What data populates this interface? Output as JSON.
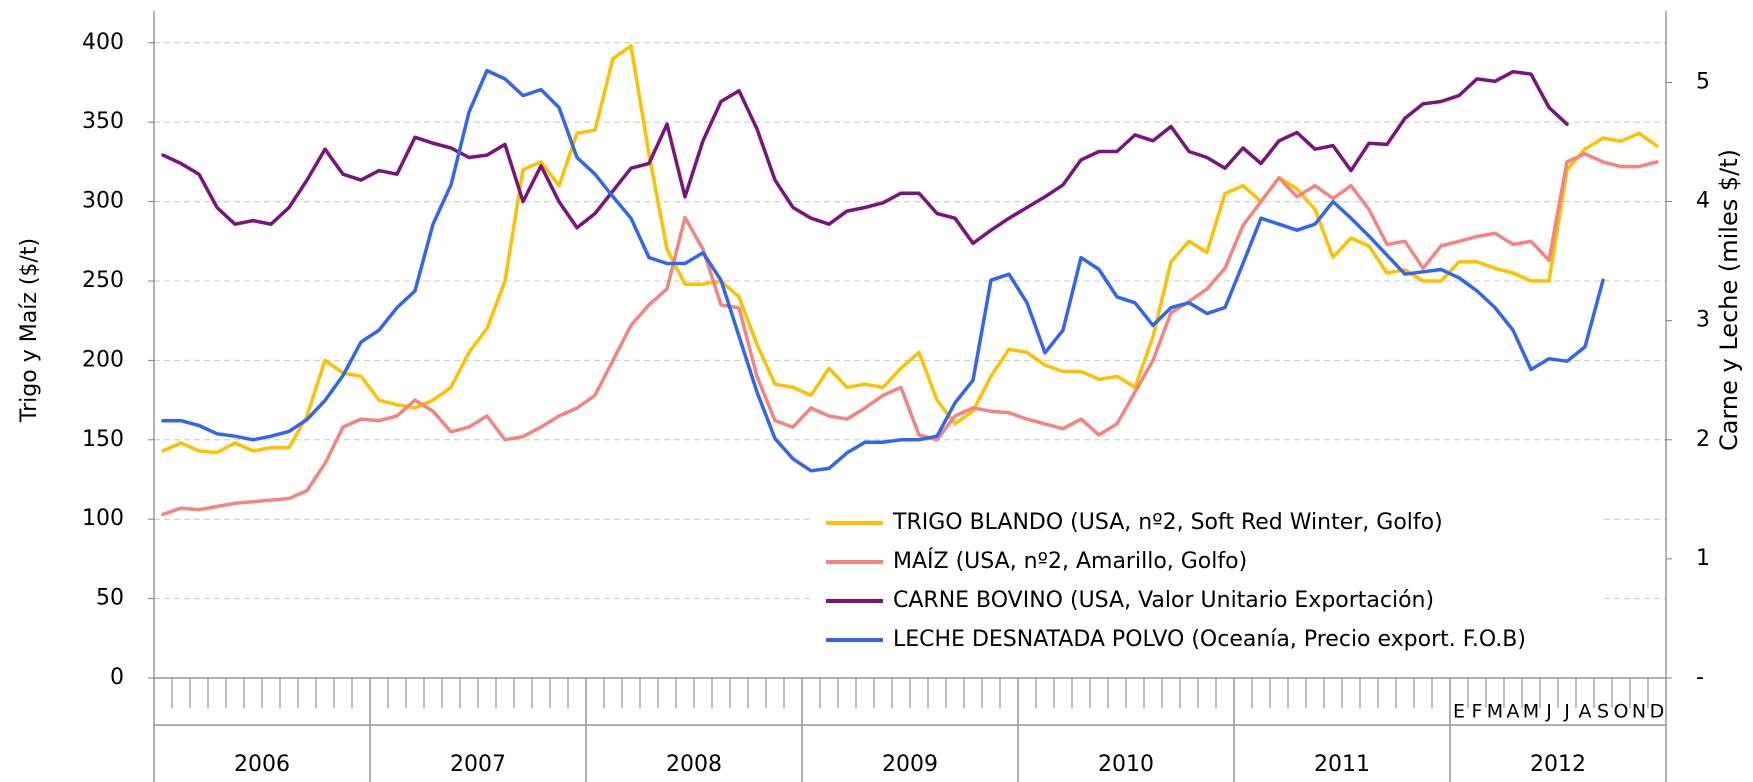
{
  "chart_data": {
    "type": "line",
    "y_label": "Trigo y Maíz ($/t)",
    "y2_label": "Carne y Leche (miles $/t)",
    "ylim": [
      0,
      420
    ],
    "yticks": [
      0,
      50,
      100,
      150,
      200,
      250,
      300,
      350,
      400
    ],
    "y2lim": [
      0,
      5.6
    ],
    "y2ticks": [
      {
        "value": 0,
        "label": "-"
      },
      1,
      2,
      3,
      4,
      5
    ],
    "grid": true,
    "years": [
      "2006",
      "2007",
      "2008",
      "2009",
      "2010",
      "2011",
      "2012"
    ],
    "categories": [
      null,
      null,
      null,
      null,
      null,
      null,
      null,
      null,
      null,
      null,
      null,
      null,
      null,
      null,
      null,
      null,
      null,
      null,
      null,
      null,
      null,
      null,
      null,
      null,
      null,
      null,
      null,
      null,
      null,
      null,
      null,
      null,
      null,
      null,
      null,
      null,
      null,
      null,
      null,
      null,
      null,
      null,
      null,
      null,
      null,
      null,
      null,
      null,
      null,
      null,
      null,
      null,
      null,
      null,
      null,
      null,
      null,
      null,
      null,
      null,
      null,
      null,
      null,
      null,
      null,
      null,
      null,
      null,
      null,
      null,
      null,
      null,
      "E",
      "F",
      "M",
      "A",
      "M",
      "J",
      "J",
      "A",
      "S",
      "O",
      "N",
      "D"
    ],
    "series": [
      {
        "name": "TRIGO BLANDO (USA, nº2, Soft Red Winter, Golfo)",
        "color": "#ffc000",
        "values": [
          143,
          148,
          143,
          142,
          148,
          143,
          145,
          145,
          165,
          200,
          192,
          190,
          175,
          172,
          170,
          175,
          183,
          205,
          220,
          250,
          320,
          325,
          310,
          343,
          345,
          390,
          398,
          330,
          270,
          248,
          248,
          250,
          240,
          210,
          185,
          183,
          178,
          195,
          183,
          185,
          183,
          195,
          205,
          175,
          160,
          168,
          190,
          207,
          205,
          197,
          193,
          193,
          188,
          190,
          183,
          215,
          262,
          275,
          268,
          305,
          310,
          300,
          315,
          308,
          295,
          265,
          277,
          272,
          255,
          257,
          250,
          250,
          262,
          262,
          258,
          255,
          250,
          250,
          320,
          333,
          340,
          338,
          343,
          335
        ]
      },
      {
        "name": "MAÍZ (USA, nº2, Amarillo, Golfo)",
        "color": "#f4847f",
        "values": [
          103,
          107,
          106,
          108,
          110,
          111,
          112,
          113,
          118,
          135,
          158,
          163,
          162,
          165,
          175,
          168,
          155,
          158,
          165,
          150,
          152,
          158,
          165,
          170,
          178,
          200,
          222,
          235,
          245,
          290,
          270,
          235,
          233,
          190,
          162,
          158,
          170,
          165,
          163,
          170,
          178,
          183,
          153,
          150,
          165,
          170,
          168,
          167,
          163,
          160,
          157,
          163,
          153,
          160,
          180,
          200,
          230,
          237,
          245,
          258,
          285,
          300,
          315,
          303,
          310,
          302,
          310,
          295,
          273,
          275,
          258,
          272,
          275,
          278,
          280,
          273,
          275,
          263,
          325,
          330,
          325,
          322,
          322,
          325
        ]
      },
      {
        "name": "CARNE BOVINO (USA, Valor Unitario Exportación)",
        "color": "#7a137e",
        "axis": "y2",
        "values": [
          4.39,
          4.32,
          4.23,
          3.95,
          3.81,
          3.84,
          3.81,
          3.95,
          4.18,
          4.44,
          4.23,
          4.18,
          4.26,
          4.23,
          4.54,
          4.49,
          4.45,
          4.37,
          4.39,
          4.48,
          4.0,
          4.3,
          4.0,
          3.78,
          3.9,
          4.09,
          4.28,
          4.32,
          4.65,
          4.04,
          4.51,
          4.84,
          4.93,
          4.61,
          4.18,
          3.95,
          3.86,
          3.81,
          3.92,
          3.95,
          3.99,
          4.07,
          4.07,
          3.9,
          3.86,
          3.65,
          3.76,
          3.86,
          3.95,
          4.04,
          4.14,
          4.35,
          4.42,
          4.42,
          4.56,
          4.51,
          4.63,
          4.42,
          4.37,
          4.28,
          4.45,
          4.32,
          4.51,
          4.58,
          4.44,
          4.47,
          4.26,
          4.49,
          4.48,
          4.7,
          4.82,
          4.84,
          4.89,
          5.03,
          5.01,
          5.09,
          5.07,
          4.79,
          4.65,
          null,
          null,
          null,
          null,
          null
        ]
      },
      {
        "name": "LECHE DESNATADA POLVO (Oceanía, Precio export. F.O.B)",
        "color": "#3366f0",
        "axis": "y2",
        "values": [
          2.16,
          2.16,
          2.12,
          2.05,
          2.03,
          2.0,
          2.03,
          2.07,
          2.17,
          2.33,
          2.54,
          2.82,
          2.92,
          3.11,
          3.25,
          3.81,
          4.14,
          4.75,
          5.1,
          5.03,
          4.89,
          4.94,
          4.79,
          4.37,
          4.23,
          4.04,
          3.86,
          3.53,
          3.48,
          3.48,
          3.57,
          3.34,
          2.87,
          2.4,
          2.01,
          1.84,
          1.74,
          1.76,
          1.89,
          1.98,
          1.98,
          2.0,
          2.0,
          2.03,
          2.31,
          2.5,
          3.34,
          3.39,
          3.15,
          2.73,
          2.92,
          3.53,
          3.43,
          3.2,
          3.15,
          2.96,
          3.11,
          3.15,
          3.06,
          3.11,
          3.48,
          3.86,
          3.81,
          3.76,
          3.81,
          4.0,
          3.86,
          3.71,
          3.55,
          3.39,
          3.41,
          3.43,
          3.36,
          3.25,
          3.11,
          2.92,
          2.59,
          2.68,
          2.66,
          2.78,
          3.34,
          null,
          null,
          null
        ]
      }
    ]
  }
}
